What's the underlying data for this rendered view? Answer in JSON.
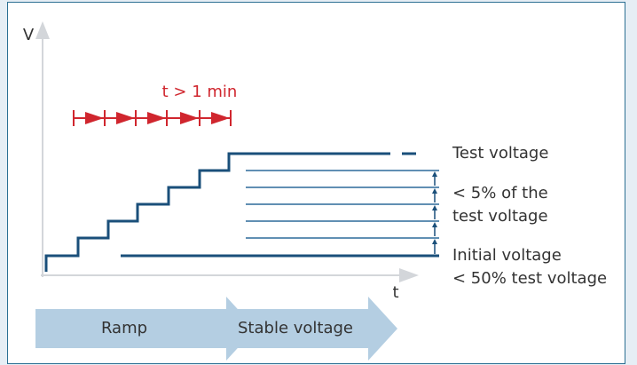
{
  "axes": {
    "y_label": "V",
    "x_label": "t"
  },
  "duration": "t > 1 min",
  "labels": {
    "test_voltage": "Test voltage",
    "step_line1": "< 5% of the",
    "step_line2": "test voltage",
    "initial_line1": "Initial voltage",
    "initial_line2": "< 50% test voltage"
  },
  "phases": [
    "Ramp",
    "Stable voltage"
  ]
}
